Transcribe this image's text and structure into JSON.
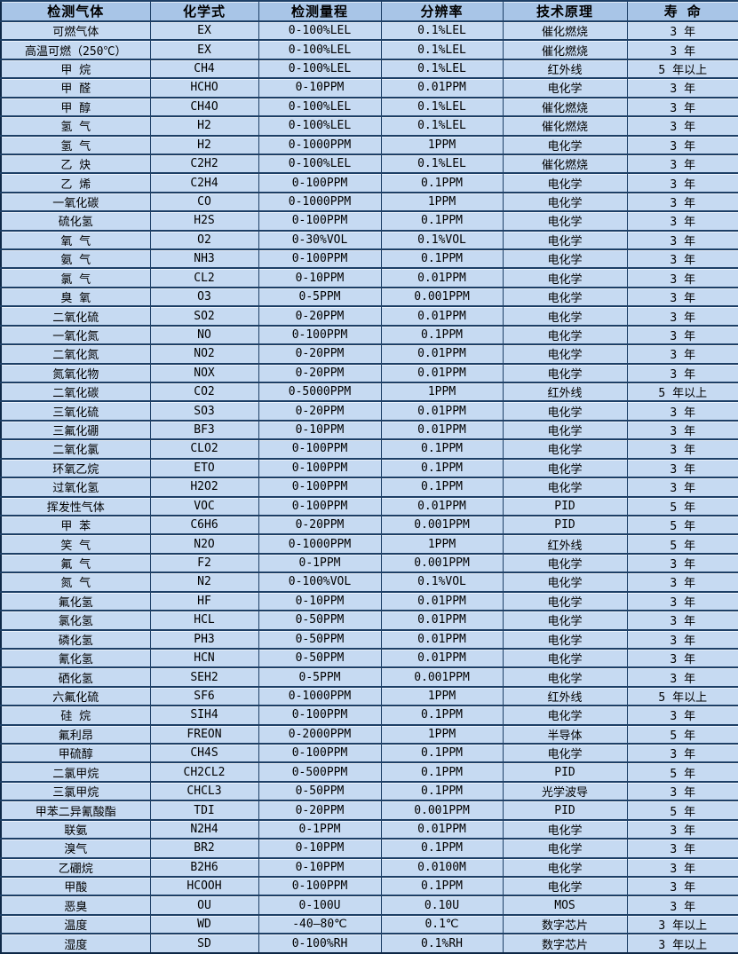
{
  "table": {
    "columns": [
      "检测气体",
      "化学式",
      "检测量程",
      "分辨率",
      "技术原理",
      "寿 命"
    ],
    "column_keys": [
      "gas-name",
      "chemical-formula",
      "detection-range",
      "resolution",
      "technology",
      "lifespan"
    ],
    "rows": [
      [
        "可燃气体",
        "EX",
        "0-100%LEL",
        "0.1%LEL",
        "催化燃烧",
        "3 年"
      ],
      [
        "高温可燃（250℃）",
        "EX",
        "0-100%LEL",
        "0.1%LEL",
        "催化燃烧",
        "3 年"
      ],
      [
        "甲 烷",
        "CH4",
        "0-100%LEL",
        "0.1%LEL",
        "红外线",
        "5 年以上"
      ],
      [
        "甲 醛",
        "HCHO",
        "0-10PPM",
        "0.01PPM",
        "电化学",
        "3 年"
      ],
      [
        "甲 醇",
        "CH4O",
        "0-100%LEL",
        "0.1%LEL",
        "催化燃烧",
        "3 年"
      ],
      [
        "氢 气",
        "H2",
        "0-100%LEL",
        "0.1%LEL",
        "催化燃烧",
        "3 年"
      ],
      [
        "氢 气",
        "H2",
        "0-1000PPM",
        "1PPM",
        "电化学",
        "3 年"
      ],
      [
        "乙 炔",
        "C2H2",
        "0-100%LEL",
        "0.1%LEL",
        "催化燃烧",
        "3 年"
      ],
      [
        "乙 烯",
        "C2H4",
        "0-100PPM",
        "0.1PPM",
        "电化学",
        "3 年"
      ],
      [
        "一氧化碳",
        "CO",
        "0-1000PPM",
        "1PPM",
        "电化学",
        "3 年"
      ],
      [
        "硫化氢",
        "H2S",
        "0-100PPM",
        "0.1PPM",
        "电化学",
        "3 年"
      ],
      [
        "氧 气",
        "O2",
        "0-30%VOL",
        "0.1%VOL",
        "电化学",
        "3 年"
      ],
      [
        "氨 气",
        "NH3",
        "0-100PPM",
        "0.1PPM",
        "电化学",
        "3 年"
      ],
      [
        "氯 气",
        "CL2",
        "0-10PPM",
        "0.01PPM",
        "电化学",
        "3 年"
      ],
      [
        "臭 氧",
        "O3",
        "0-5PPM",
        "0.001PPM",
        "电化学",
        "3 年"
      ],
      [
        "二氧化硫",
        "SO2",
        "0-20PPM",
        "0.01PPM",
        "电化学",
        "3 年"
      ],
      [
        "一氧化氮",
        "NO",
        "0-100PPM",
        "0.1PPM",
        "电化学",
        "3 年"
      ],
      [
        "二氧化氮",
        "NO2",
        "0-20PPM",
        "0.01PPM",
        "电化学",
        "3 年"
      ],
      [
        "氮氧化物",
        "NOX",
        "0-20PPM",
        "0.01PPM",
        "电化学",
        "3 年"
      ],
      [
        "二氧化碳",
        "CO2",
        "0-5000PPM",
        "1PPM",
        "红外线",
        "5 年以上"
      ],
      [
        "三氧化硫",
        "SO3",
        "0-20PPM",
        "0.01PPM",
        "电化学",
        "3 年"
      ],
      [
        "三氟化硼",
        "BF3",
        "0-10PPM",
        "0.01PPM",
        "电化学",
        "3 年"
      ],
      [
        "二氧化氯",
        "CLO2",
        "0-100PPM",
        "0.1PPM",
        "电化学",
        "3 年"
      ],
      [
        "环氧乙烷",
        "ETO",
        "0-100PPM",
        "0.1PPM",
        "电化学",
        "3 年"
      ],
      [
        "过氧化氢",
        "H2O2",
        "0-100PPM",
        "0.1PPM",
        "电化学",
        "3 年"
      ],
      [
        "挥发性气体",
        "VOC",
        "0-100PPM",
        "0.01PPM",
        "PID",
        "5 年"
      ],
      [
        "甲 苯",
        "C6H6",
        "0-20PPM",
        "0.001PPM",
        "PID",
        "5 年"
      ],
      [
        "笑 气",
        "N2O",
        "0-1000PPM",
        "1PPM",
        "红外线",
        "5 年"
      ],
      [
        "氟 气",
        "F2",
        "0-1PPM",
        "0.001PPM",
        "电化学",
        "3 年"
      ],
      [
        "氮 气",
        "N2",
        "0-100%VOL",
        "0.1%VOL",
        "电化学",
        "3 年"
      ],
      [
        "氟化氢",
        "HF",
        "0-10PPM",
        "0.01PPM",
        "电化学",
        "3 年"
      ],
      [
        "氯化氢",
        "HCL",
        "0-50PPM",
        "0.01PPM",
        "电化学",
        "3 年"
      ],
      [
        "磷化氢",
        "PH3",
        "0-50PPM",
        "0.01PPM",
        "电化学",
        "3 年"
      ],
      [
        "氰化氢",
        "HCN",
        "0-50PPM",
        "0.01PPM",
        "电化学",
        "3 年"
      ],
      [
        "硒化氢",
        "SEH2",
        "0-5PPM",
        "0.001PPM",
        "电化学",
        "3 年"
      ],
      [
        "六氟化硫",
        "SF6",
        "0-1000PPM",
        "1PPM",
        "红外线",
        "5 年以上"
      ],
      [
        "硅 烷",
        "SIH4",
        "0-100PPM",
        "0.1PPM",
        "电化学",
        "3 年"
      ],
      [
        "氟利昂",
        "FREON",
        "0-2000PPM",
        "1PPM",
        "半导体",
        "5 年"
      ],
      [
        "甲硫醇",
        "CH4S",
        "0-100PPM",
        "0.1PPM",
        "电化学",
        "3 年"
      ],
      [
        "二氯甲烷",
        "CH2CL2",
        "0-500PPM",
        "0.1PPM",
        "PID",
        "5 年"
      ],
      [
        "三氯甲烷",
        "CHCL3",
        "0-50PPM",
        "0.1PPM",
        "光学波导",
        "3 年"
      ],
      [
        "甲苯二异氰酸酯",
        "TDI",
        "0-20PPM",
        "0.001PPM",
        "PID",
        "5 年"
      ],
      [
        "联氨",
        "N2H4",
        "0-1PPM",
        "0.01PPM",
        "电化学",
        "3 年"
      ],
      [
        "溴气",
        "BR2",
        "0-10PPM",
        "0.1PPM",
        "电化学",
        "3 年"
      ],
      [
        "乙硼烷",
        "B2H6",
        "0-10PPM",
        "0.0100M",
        "电化学",
        "3 年"
      ],
      [
        "甲酸",
        "HCOOH",
        "0-100PPM",
        "0.1PPM",
        "电化学",
        "3 年"
      ],
      [
        "恶臭",
        "OU",
        "0-100U",
        "0.10U",
        "MOS",
        "3 年"
      ],
      [
        "温度",
        "WD",
        "-40—80℃",
        "0.1℃",
        "数字芯片",
        "3 年以上"
      ],
      [
        "湿度",
        "SD",
        "0-100%RH",
        "0.1%RH",
        "数字芯片",
        "3 年以上"
      ]
    ],
    "colors": {
      "header_bg": "#a8c5e7",
      "row_bg": "#c6daf2",
      "grid": "#1d3f66",
      "outer_border": "#0e2847",
      "text": "#000000"
    }
  }
}
